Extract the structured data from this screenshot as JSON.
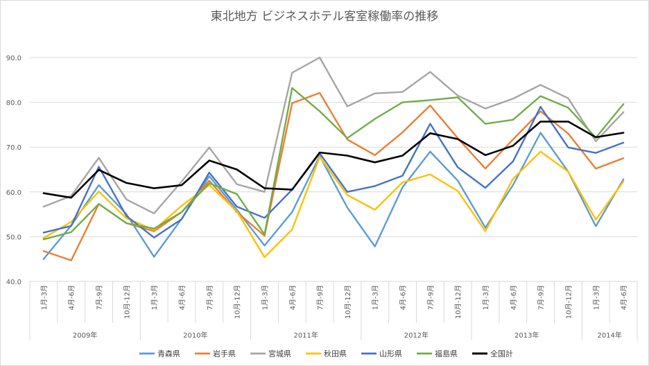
{
  "chart_data": {
    "type": "line",
    "title": "東北地方 ビジネスホテル客室稼働率の推移",
    "ylim": [
      40,
      90
    ],
    "yticks": [
      "40.0",
      "50.0",
      "60.0",
      "70.0",
      "80.0",
      "90.0"
    ],
    "grid": true,
    "legend_position": "bottom",
    "categories": [
      "1月-3月",
      "4月-6月",
      "7月-9月",
      "10月-12月",
      "1月-3月",
      "4月-6月",
      "7月-9月",
      "10月-12月",
      "1月-3月",
      "4月-6月",
      "7月-9月",
      "10月-12月",
      "1月-3月",
      "4月-6月",
      "7月-9月",
      "10月-12月",
      "1月-3月",
      "4月-6月",
      "7月-9月",
      "10月-12月",
      "1月-3月",
      "4月-6月"
    ],
    "years": [
      {
        "label": "2009年",
        "count": 4
      },
      {
        "label": "2010年",
        "count": 4
      },
      {
        "label": "2011年",
        "count": 4
      },
      {
        "label": "2012年",
        "count": 4
      },
      {
        "label": "2013年",
        "count": 4
      },
      {
        "label": "2014年",
        "count": 2
      }
    ],
    "series": [
      {
        "name": "青森県",
        "color": "#5b9bd5",
        "width": 2.4,
        "values": [
          45.0,
          52.5,
          61.5,
          55.0,
          45.5,
          54.0,
          63.5,
          56.0,
          48.0,
          55.5,
          68.0,
          56.5,
          47.8,
          61.0,
          69.0,
          62.5,
          52.0,
          61.5,
          73.2,
          64.5,
          52.3,
          62.8
        ]
      },
      {
        "name": "岩手県",
        "color": "#ed7d31",
        "width": 2.4,
        "values": [
          46.8,
          44.7,
          57.3,
          53.0,
          51.2,
          55.5,
          62.5,
          55.5,
          50.2,
          79.8,
          82.1,
          71.7,
          68.2,
          73.3,
          79.3,
          72.0,
          65.2,
          71.7,
          78.0,
          73.0,
          65.2,
          67.5
        ]
      },
      {
        "name": "宮城県",
        "color": "#a5a5a5",
        "width": 2.4,
        "values": [
          56.7,
          59.1,
          67.6,
          58.3,
          55.2,
          62.3,
          69.9,
          61.7,
          60.0,
          86.6,
          90.0,
          79.1,
          82.0,
          82.3,
          86.8,
          81.5,
          78.6,
          80.8,
          83.9,
          80.9,
          71.3,
          77.8
        ]
      },
      {
        "name": "秋田県",
        "color": "#ffc000",
        "width": 2.4,
        "values": [
          49.7,
          53.3,
          60.1,
          54.1,
          51.5,
          56.9,
          61.5,
          55.7,
          45.4,
          51.6,
          67.8,
          59.3,
          56.0,
          62.1,
          63.9,
          60.2,
          51.2,
          62.9,
          69.0,
          64.5,
          53.8,
          62.3
        ]
      },
      {
        "name": "山形県",
        "color": "#4472c4",
        "width": 2.4,
        "values": [
          50.9,
          52.4,
          65.6,
          54.6,
          49.8,
          53.9,
          64.3,
          56.7,
          54.2,
          60.5,
          68.6,
          60.0,
          61.3,
          63.6,
          75.2,
          65.5,
          60.9,
          66.8,
          79.0,
          69.9,
          68.7,
          71.0
        ]
      },
      {
        "name": "福島県",
        "color": "#70ad47",
        "width": 2.4,
        "values": [
          49.4,
          51.0,
          57.3,
          53.0,
          51.8,
          55.5,
          61.9,
          59.5,
          50.5,
          83.2,
          78.0,
          72.0,
          76.3,
          80.0,
          80.5,
          81.1,
          75.2,
          76.1,
          81.4,
          78.8,
          72.1,
          79.6
        ]
      },
      {
        "name": "全国計",
        "color": "#000000",
        "width": 2.6,
        "values": [
          59.7,
          58.7,
          64.9,
          62.0,
          60.8,
          61.5,
          67.0,
          65.0,
          60.8,
          60.5,
          68.8,
          68.1,
          66.6,
          68.1,
          73.1,
          71.8,
          68.2,
          70.3,
          75.7,
          75.7,
          72.2,
          73.2
        ]
      }
    ]
  }
}
